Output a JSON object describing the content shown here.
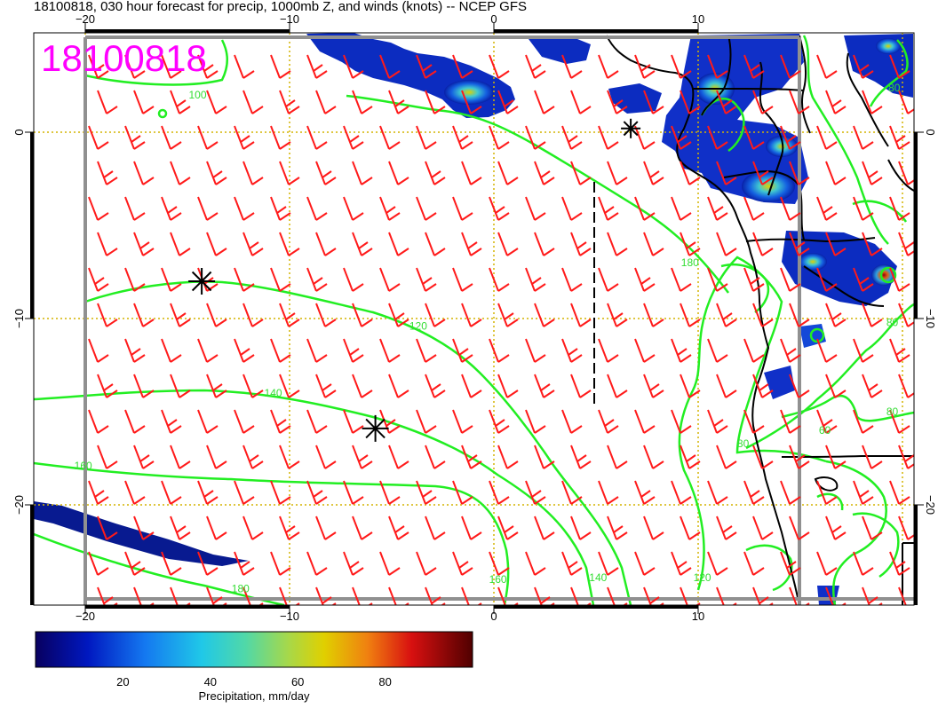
{
  "title": "18100818, 030 hour forecast for precip, 1000mb Z, and winds (knots) -- NCEP GFS",
  "date_stamp": "18100818",
  "lon_ticks": [
    {
      "lon": -20,
      "label": "−20"
    },
    {
      "lon": -10,
      "label": "−10"
    },
    {
      "lon": 0,
      "label": "0"
    },
    {
      "lon": 10,
      "label": "10"
    }
  ],
  "lat_ticks": [
    {
      "lat": 0,
      "label": "0"
    },
    {
      "lat": -10,
      "label": "−10"
    },
    {
      "lat": -20,
      "label": "−20"
    }
  ],
  "contour_labels": [
    {
      "text": "100",
      "lon": -14.5,
      "lat": 1.8
    },
    {
      "text": "180",
      "lon": 9.6,
      "lat": -7.2
    },
    {
      "text": "120",
      "lon": -3.7,
      "lat": -10.6
    },
    {
      "text": "140",
      "lon": -10.8,
      "lat": -14.2
    },
    {
      "text": "160",
      "lon": -20.1,
      "lat": -18.1
    },
    {
      "text": "180",
      "lon": -12.4,
      "lat": -24.7
    },
    {
      "text": "160",
      "lon": 0.2,
      "lat": -24.2
    },
    {
      "text": "140",
      "lon": 5.1,
      "lat": -24.1
    },
    {
      "text": "120",
      "lon": 10.2,
      "lat": -24.1
    },
    {
      "text": "80",
      "lon": 19.6,
      "lat": 2.2
    },
    {
      "text": "80",
      "lon": 19.5,
      "lat": -10.4
    },
    {
      "text": "80",
      "lon": 19.5,
      "lat": -15.2
    },
    {
      "text": "60",
      "lon": 16.2,
      "lat": -16.2
    },
    {
      "text": "80",
      "lon": 12.2,
      "lat": -16.9
    }
  ],
  "pressure_centers": [
    {
      "type": "asterisk",
      "lon": -14.3,
      "lat": -8.0
    },
    {
      "type": "asterisk",
      "lon": -5.8,
      "lat": -15.9
    },
    {
      "type": "asterisk",
      "lon": 6.7,
      "lat": 0.2
    }
  ],
  "colorbar": {
    "label": "Precipitation, mm/day",
    "min": 0,
    "max": 100,
    "ticks": [
      {
        "value": 20,
        "label": "20"
      },
      {
        "value": 40,
        "label": "40"
      },
      {
        "value": 60,
        "label": "60"
      },
      {
        "value": 80,
        "label": "80"
      }
    ]
  },
  "colors": {
    "wind_barbs": "#ff1a1a",
    "contours": "#22ee22",
    "stamp": "#ff00ff",
    "grid": "#d4b400",
    "coast": "#000000"
  }
}
